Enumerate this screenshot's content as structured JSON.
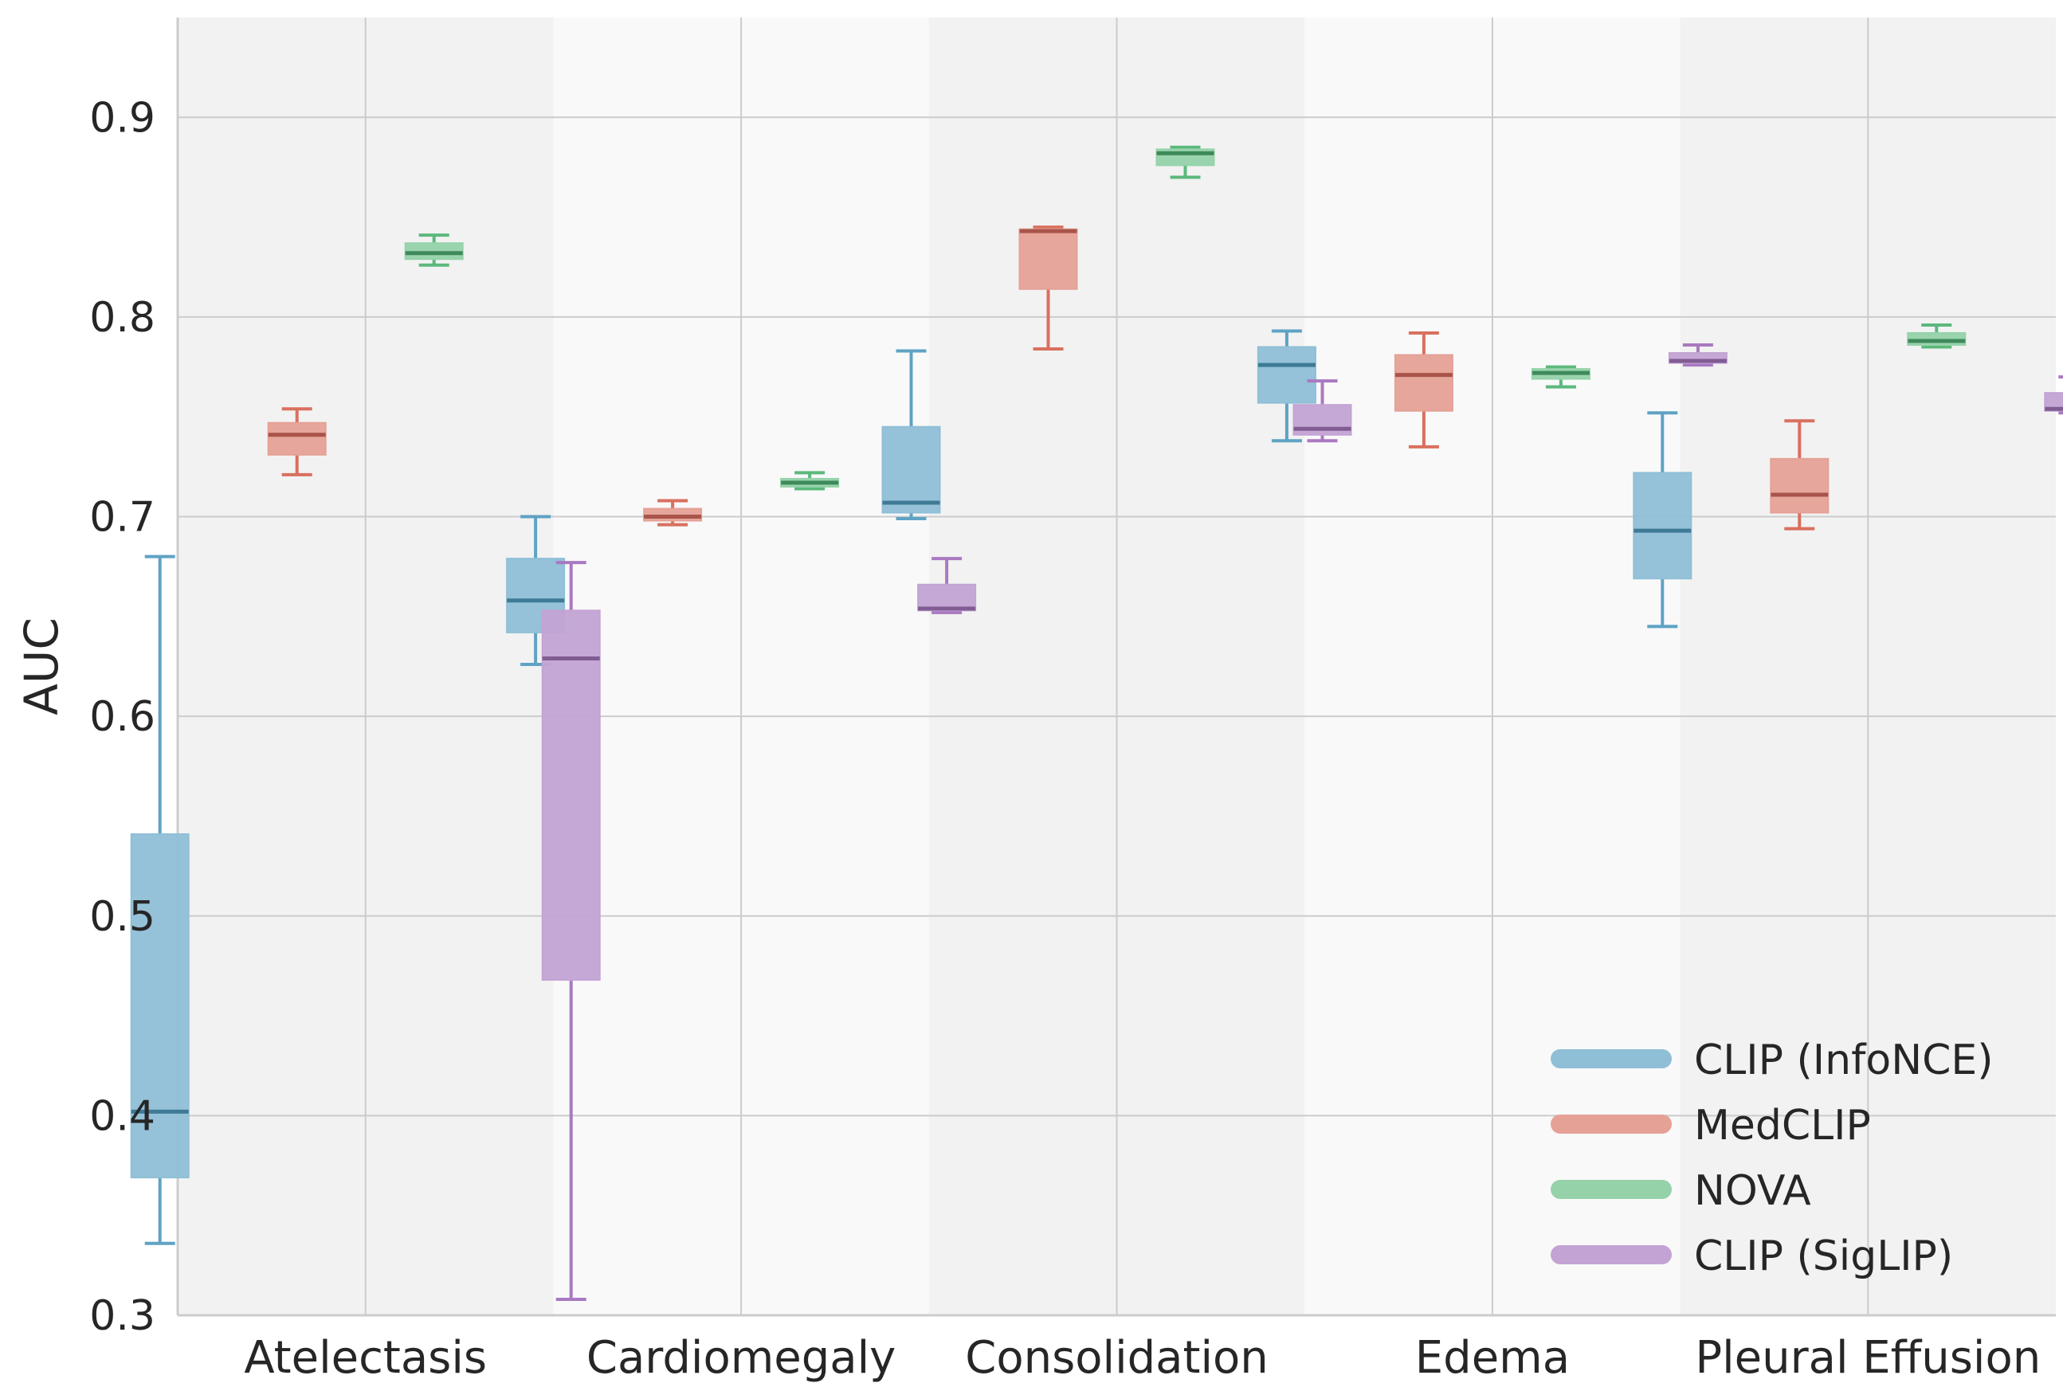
{
  "chart_data": {
    "type": "box",
    "ylabel": "AUC",
    "ylim": [
      0.3,
      0.95
    ],
    "yticks": [
      {
        "value": 0.3,
        "label": "0.3"
      },
      {
        "value": 0.4,
        "label": "0.4"
      },
      {
        "value": 0.5,
        "label": "0.5"
      },
      {
        "value": 0.6,
        "label": "0.6"
      },
      {
        "value": 0.7,
        "label": "0.7"
      },
      {
        "value": 0.8,
        "label": "0.8"
      },
      {
        "value": 0.9,
        "label": "0.9"
      }
    ],
    "grid": true,
    "legend_position": "bottom-right",
    "categories": [
      "Atelectasis",
      "Cardiomegaly",
      "Consolidation",
      "Edema",
      "Pleural Effusion"
    ],
    "series": [
      {
        "name": "CLIP (InfoNCE)",
        "color": "#5fa2c4",
        "fill": "#8fbfd6",
        "median_color": "#3f7a96",
        "boxes": [
          {
            "min": 0.336,
            "q1": 0.369,
            "median": 0.402,
            "q3": 0.541,
            "max": 0.68
          },
          {
            "min": 0.626,
            "q1": 0.642,
            "median": 0.658,
            "q3": 0.679,
            "max": 0.7
          },
          {
            "min": 0.699,
            "q1": 0.702,
            "median": 0.707,
            "q3": 0.745,
            "max": 0.783
          },
          {
            "min": 0.738,
            "q1": 0.757,
            "median": 0.776,
            "q3": 0.785,
            "max": 0.793
          },
          {
            "min": 0.645,
            "q1": 0.669,
            "median": 0.693,
            "q3": 0.722,
            "max": 0.752
          }
        ]
      },
      {
        "name": "MedCLIP",
        "color": "#d9705f",
        "fill": "#e5a196",
        "median_color": "#a9544a",
        "boxes": [
          {
            "min": 0.721,
            "q1": 0.731,
            "median": 0.741,
            "q3": 0.747,
            "max": 0.754
          },
          {
            "min": 0.696,
            "q1": 0.698,
            "median": 0.7,
            "q3": 0.704,
            "max": 0.708
          },
          {
            "min": 0.784,
            "q1": 0.814,
            "median": 0.843,
            "q3": 0.844,
            "max": 0.845
          },
          {
            "min": 0.735,
            "q1": 0.753,
            "median": 0.771,
            "q3": 0.781,
            "max": 0.792
          },
          {
            "min": 0.694,
            "q1": 0.702,
            "median": 0.711,
            "q3": 0.729,
            "max": 0.748
          }
        ]
      },
      {
        "name": "NOVA",
        "color": "#5cb87c",
        "fill": "#95d2aa",
        "median_color": "#3f8a5a",
        "boxes": [
          {
            "min": 0.826,
            "q1": 0.829,
            "median": 0.832,
            "q3": 0.837,
            "max": 0.841
          },
          {
            "min": 0.714,
            "q1": 0.715,
            "median": 0.717,
            "q3": 0.719,
            "max": 0.722
          },
          {
            "min": 0.87,
            "q1": 0.876,
            "median": 0.882,
            "q3": 0.884,
            "max": 0.885
          },
          {
            "min": 0.765,
            "q1": 0.769,
            "median": 0.772,
            "q3": 0.774,
            "max": 0.775
          },
          {
            "min": 0.785,
            "q1": 0.786,
            "median": 0.788,
            "q3": 0.792,
            "max": 0.796
          }
        ]
      },
      {
        "name": "CLIP (SigLIP)",
        "color": "#a979c1",
        "fill": "#c3a3d4",
        "median_color": "#805c93",
        "boxes": [
          {
            "min": 0.308,
            "q1": 0.468,
            "median": 0.629,
            "q3": 0.653,
            "max": 0.677
          },
          {
            "min": 0.652,
            "q1": 0.653,
            "median": 0.654,
            "q3": 0.666,
            "max": 0.679
          },
          {
            "min": 0.738,
            "q1": 0.741,
            "median": 0.744,
            "q3": 0.756,
            "max": 0.768
          },
          {
            "min": 0.776,
            "q1": 0.777,
            "median": 0.778,
            "q3": 0.782,
            "max": 0.786
          },
          {
            "min": 0.752,
            "q1": 0.753,
            "median": 0.754,
            "q3": 0.762,
            "max": 0.77
          }
        ]
      }
    ]
  }
}
